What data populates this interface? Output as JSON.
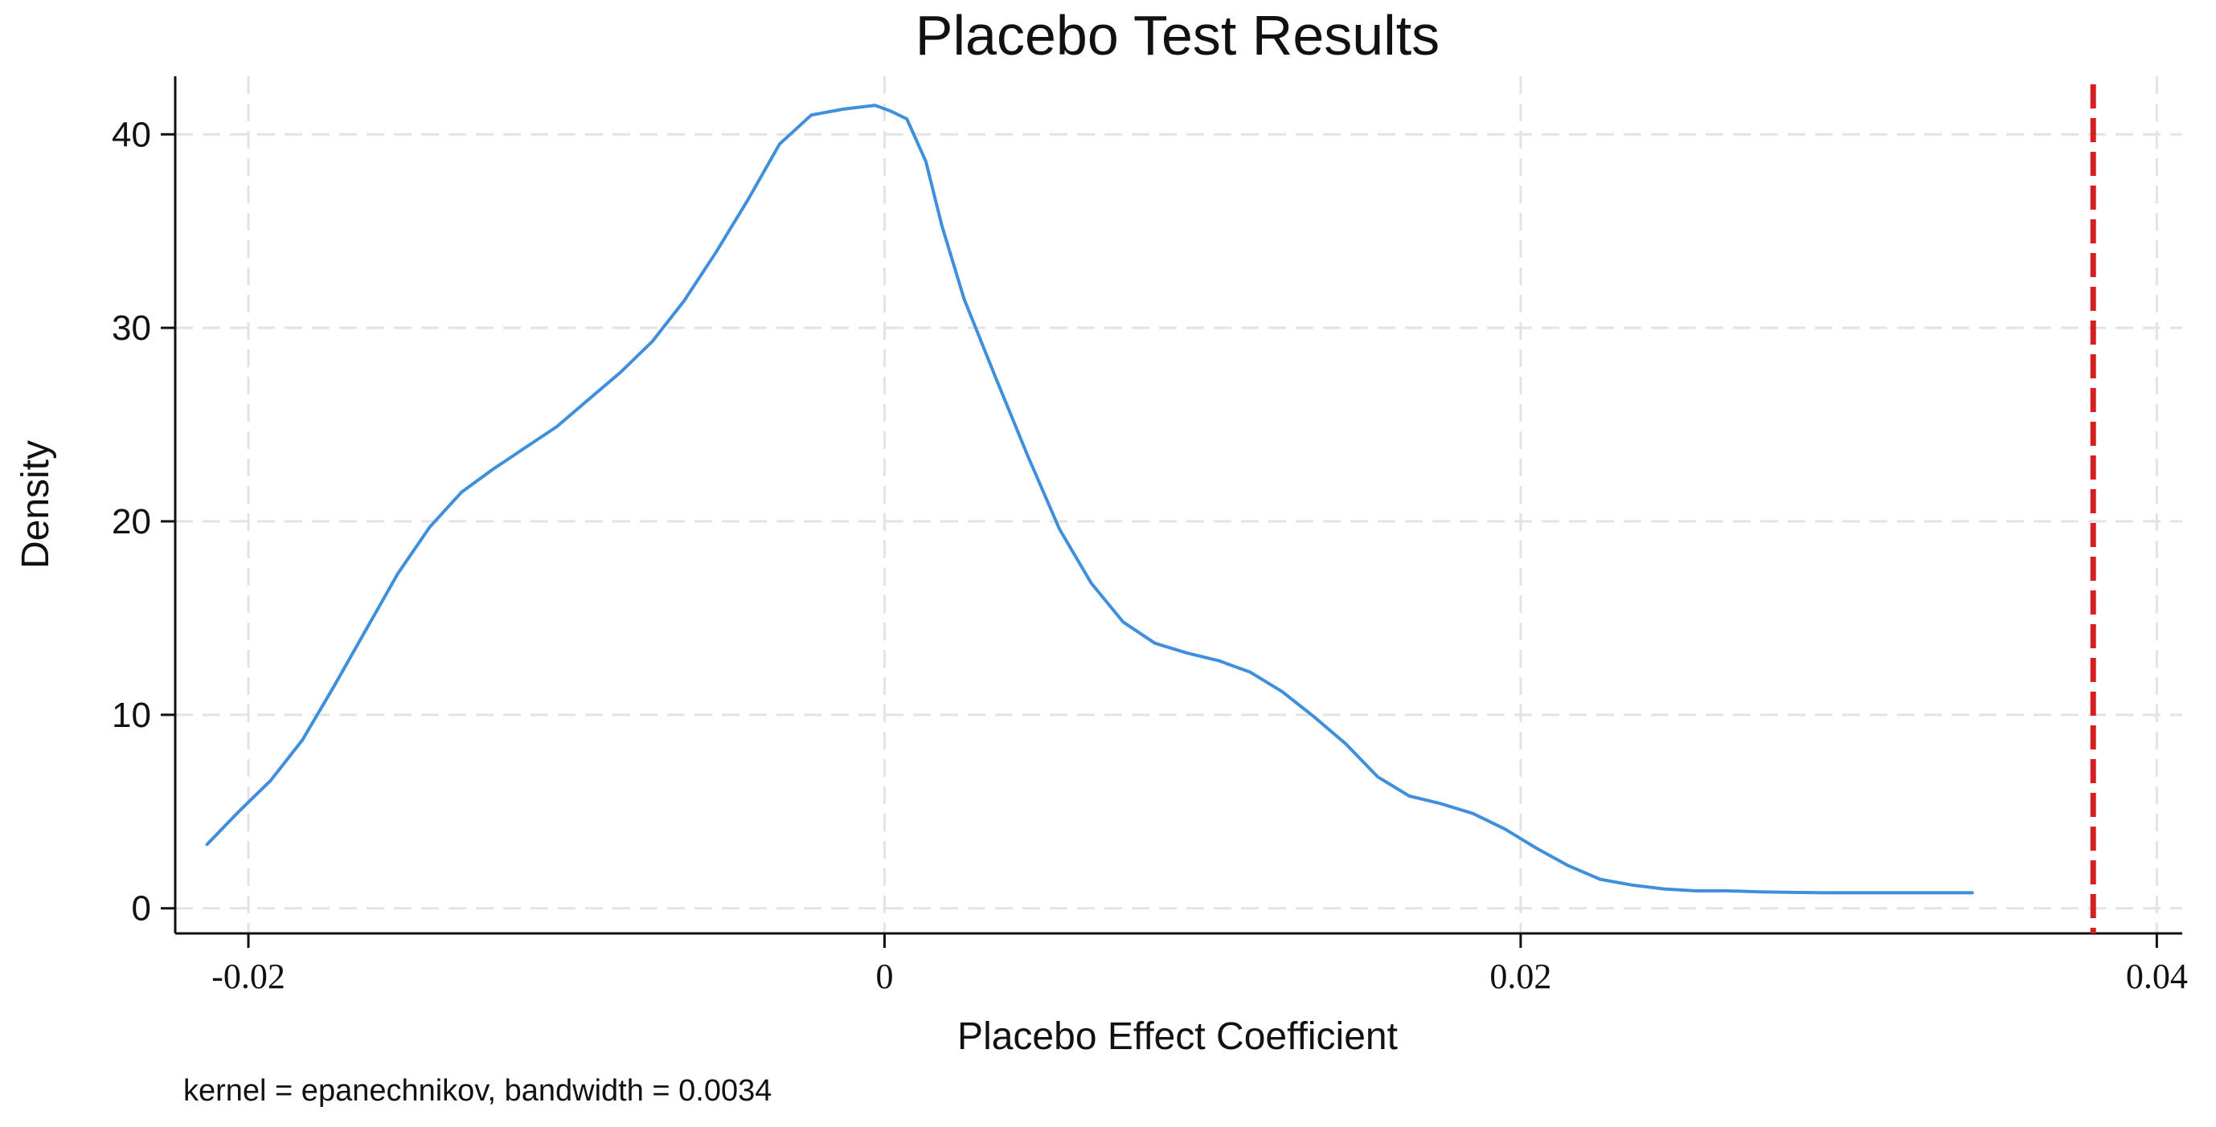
{
  "chart_data": {
    "type": "line",
    "title": "Placebo Test Results",
    "xlabel": "Placebo Effect Coefficient",
    "ylabel": "Density",
    "note": "kernel = epanechnikov, bandwidth = 0.0034",
    "xlim": [
      -0.0223,
      0.0408
    ],
    "ylim": [
      -1.3,
      43.0
    ],
    "x_ticks": [
      {
        "value": -0.02,
        "label": "-0.02"
      },
      {
        "value": 0,
        "label": "0"
      },
      {
        "value": 0.02,
        "label": "0.02"
      },
      {
        "value": 0.04,
        "label": "0.04"
      }
    ],
    "y_ticks": [
      {
        "value": 0,
        "label": "0"
      },
      {
        "value": 10,
        "label": "10"
      },
      {
        "value": 20,
        "label": "20"
      },
      {
        "value": 30,
        "label": "30"
      },
      {
        "value": 40,
        "label": "40"
      }
    ],
    "grid": true,
    "series": [
      {
        "color": "#3f8fdc",
        "x": [
          -0.0213,
          -0.0203,
          -0.0193,
          -0.0183,
          -0.0173,
          -0.0163,
          -0.0153,
          -0.0143,
          -0.0133,
          -0.0123,
          -0.0113,
          -0.0103,
          -0.0093,
          -0.0083,
          -0.0073,
          -0.0063,
          -0.0053,
          -0.0043,
          -0.0033,
          -0.0023,
          -0.0013,
          -0.0003,
          0.0002,
          0.0007,
          0.0013,
          0.0018,
          0.0025,
          0.0035,
          0.0045,
          0.0055,
          0.0065,
          0.0075,
          0.0085,
          0.0095,
          0.0105,
          0.0115,
          0.0125,
          0.0135,
          0.0145,
          0.0155,
          0.0165,
          0.0175,
          0.0185,
          0.0195,
          0.0205,
          0.0215,
          0.0225,
          0.0235,
          0.0245,
          0.0255,
          0.0265,
          0.0275,
          0.0285,
          0.0295,
          0.0305,
          0.0315,
          0.0325,
          0.0335,
          0.0342
        ],
        "y": [
          3.3,
          5.0,
          6.6,
          8.7,
          11.5,
          14.4,
          17.3,
          19.7,
          21.5,
          22.7,
          23.8,
          24.9,
          26.3,
          27.7,
          29.3,
          31.4,
          33.9,
          36.6,
          39.5,
          41.0,
          41.3,
          41.5,
          41.2,
          40.8,
          38.6,
          35.3,
          31.5,
          27.4,
          23.4,
          19.6,
          16.8,
          14.8,
          13.7,
          13.2,
          12.8,
          12.2,
          11.2,
          9.9,
          8.5,
          6.8,
          5.8,
          5.4,
          4.9,
          4.1,
          3.1,
          2.2,
          1.5,
          1.2,
          1.0,
          0.9,
          0.9,
          0.85,
          0.82,
          0.8,
          0.8,
          0.8,
          0.8,
          0.8,
          0.8
        ]
      }
    ],
    "reference_line": {
      "x": 0.038,
      "color": "#d42020",
      "style": "dashed"
    }
  }
}
